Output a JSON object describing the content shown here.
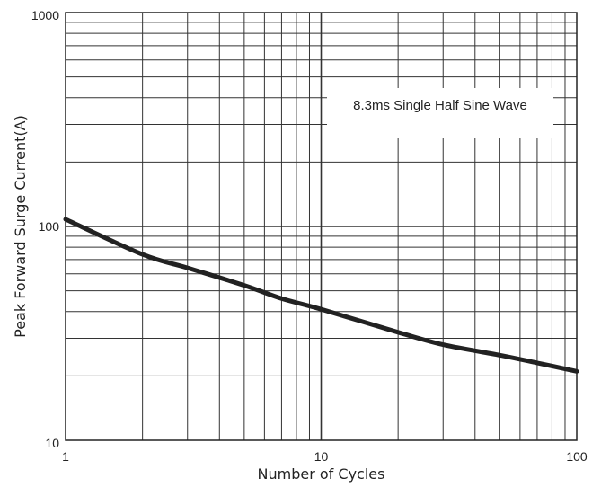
{
  "chart_data": {
    "type": "line",
    "title": "",
    "xlabel": "Number of Cycles",
    "ylabel": "Peak Forward Surge Current(A)",
    "xscale": "log",
    "yscale": "log",
    "xlim": [
      1,
      100
    ],
    "ylim": [
      10,
      1000
    ],
    "xticks": [
      "1",
      "10",
      "100"
    ],
    "yticks": [
      "10",
      "100",
      "1000"
    ],
    "grid": true,
    "annotation": "8.3ms Single Half Sine Wave",
    "series": [
      {
        "x": [
          1,
          2,
          3,
          5,
          7,
          10,
          20,
          30,
          50,
          70,
          100
        ],
        "y": [
          108,
          74,
          64,
          53,
          46,
          41,
          32,
          28,
          25,
          23,
          21
        ]
      }
    ],
    "colors": {
      "line": "#222222",
      "grid": "#333333",
      "background": "#ffffff"
    }
  }
}
